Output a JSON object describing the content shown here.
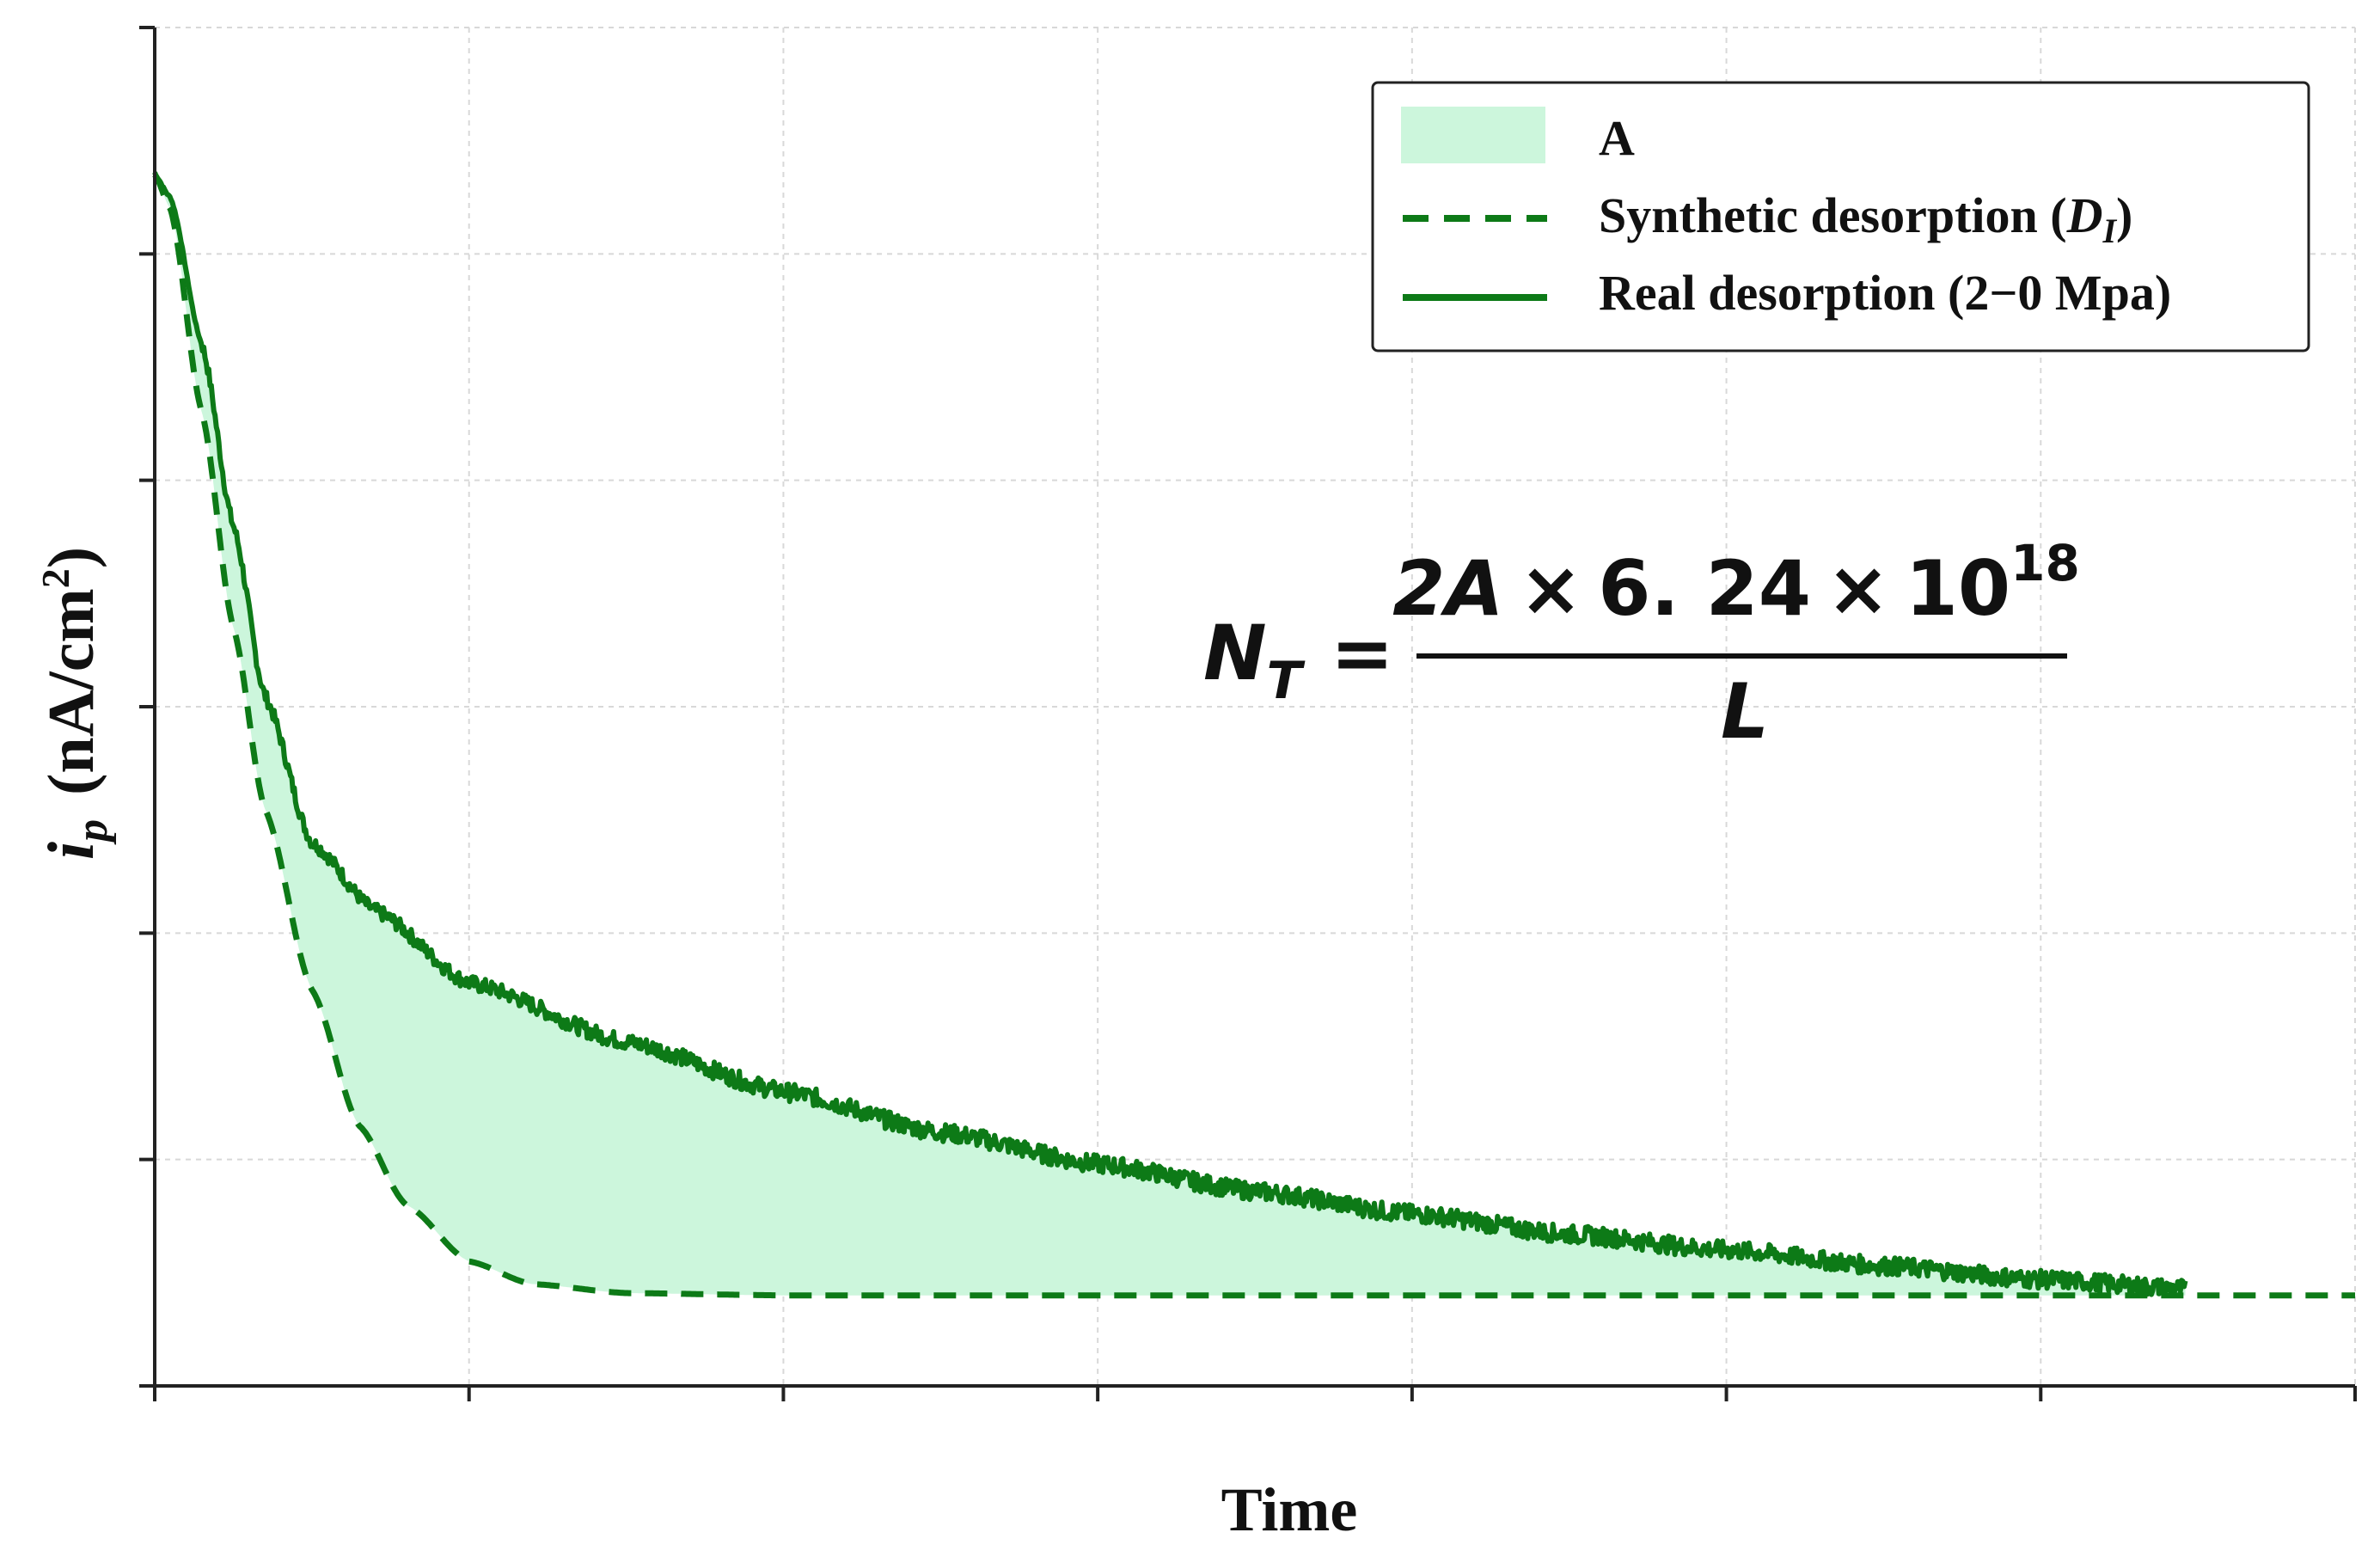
{
  "chart_data": {
    "type": "area",
    "title": "",
    "xlabel": "Time",
    "ylabel": {
      "symbol": "i",
      "subscript": "p",
      "units": "(nA/cm",
      "units_sup": "2",
      "units_close": ")"
    },
    "xlim": [
      0,
      7
    ],
    "ylim": [
      0,
      6
    ],
    "x_ticks_count": 8,
    "y_ticks_count": 7,
    "tick_labels_shown": false,
    "grid": true,
    "legend_position": "top-right",
    "legend": [
      {
        "label": "A",
        "italic_part": "",
        "label_suffix": "",
        "style": "fill",
        "color": "#ccf6dc"
      },
      {
        "label": "Synthetic desorption (",
        "italic_part": "D",
        "italic_sub": "I",
        "label_suffix": ")",
        "style": "dashed",
        "color": "#0d7a17"
      },
      {
        "label": "Real desorption (2−0 Mpa)",
        "italic_part": "",
        "label_suffix": "",
        "style": "solid",
        "color": "#0d7a17"
      }
    ],
    "series": [
      {
        "name": "Synthetic desorption (DI)",
        "style": "dashed",
        "color": "#0d7a17",
        "x": [
          0,
          0.05,
          0.15,
          0.25,
          0.35,
          0.5,
          0.65,
          0.8,
          1.0,
          1.2,
          1.5,
          2.0,
          3.0,
          4.0,
          5.0,
          6.0,
          7.0
        ],
        "y": [
          5.35,
          5.2,
          4.3,
          3.35,
          2.55,
          1.75,
          1.15,
          0.8,
          0.55,
          0.45,
          0.41,
          0.4,
          0.4,
          0.4,
          0.4,
          0.4,
          0.4
        ]
      },
      {
        "name": "Real desorption (2−0 Mpa)",
        "style": "solid",
        "color": "#0d7a17",
        "x": [
          0,
          0.05,
          0.15,
          0.25,
          0.35,
          0.5,
          0.7,
          1.0,
          1.5,
          2.0,
          2.5,
          3.0,
          3.5,
          4.0,
          4.5,
          5.0,
          5.5,
          6.0,
          6.46
        ],
        "y": [
          5.35,
          5.25,
          4.6,
          3.8,
          3.05,
          2.4,
          2.1,
          1.78,
          1.52,
          1.3,
          1.12,
          0.98,
          0.86,
          0.76,
          0.67,
          0.6,
          0.53,
          0.47,
          0.43
        ]
      }
    ],
    "shaded_region": {
      "label": "A",
      "between": [
        "Real desorption (2−0 Mpa)",
        "Synthetic desorption (DI)"
      ],
      "color": "#ccf6dc"
    },
    "annotation": {
      "lhs": "N",
      "lhs_sub": "T",
      "equals": "=",
      "numerator_a": "2A",
      "numerator_times1": "×",
      "numerator_b": "6. 24",
      "numerator_times2": "×",
      "numerator_c": "10",
      "numerator_exp": "18",
      "denominator": "L"
    }
  }
}
